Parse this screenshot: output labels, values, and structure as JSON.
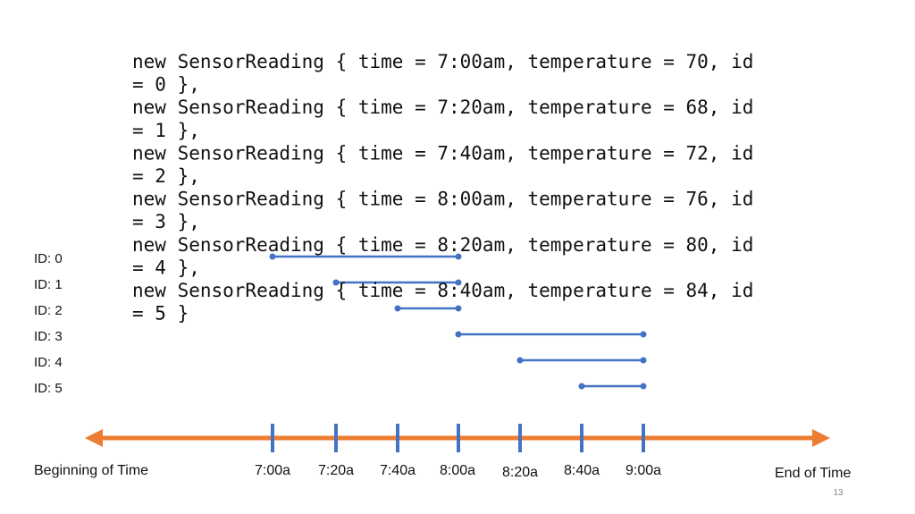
{
  "code": {
    "lines": [
      "new SensorReading { time = 7:00am, temperature = 70, id",
      "= 0 },",
      "new SensorReading { time = 7:20am, temperature = 68, id",
      "= 1 },",
      "new SensorReading { time = 7:40am, temperature = 72, id",
      "= 2 },",
      "new SensorReading { time = 8:00am, temperature = 76, id",
      "= 3 },",
      "new SensorReading { time = 8:20am, temperature = 80, id",
      "= 4 },",
      "new SensorReading { time = 8:40am, temperature = 84, id",
      "= 5 }"
    ]
  },
  "ids": [
    "ID: 0",
    "ID: 1",
    "ID: 2",
    "ID: 3",
    "ID: 4",
    "ID: 5"
  ],
  "timeline": {
    "start": "Beginning of Time",
    "end": "End of Time",
    "ticks": [
      "7:00a",
      "7:20a",
      "7:40a",
      "8:00a",
      "8:20a",
      "8:40a",
      "9:00a"
    ]
  },
  "slide_number": "13"
}
